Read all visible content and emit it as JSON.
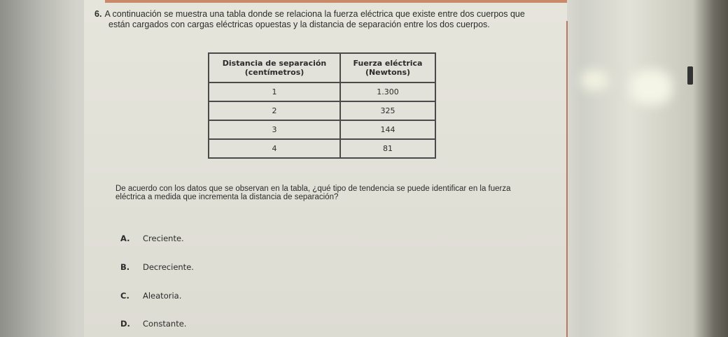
{
  "question": {
    "number": "6.",
    "line1": "A continuación se muestra una tabla donde se relaciona la fuerza eléctrica que existe entre dos cuerpos que",
    "line2": "están cargados con cargas  eléctricas opuestas y la distancia de separación entre los dos cuerpos."
  },
  "table": {
    "headers": [
      "Distancia de separación",
      "(centímetros)",
      "Fuerza eléctrica",
      "(Newtons)"
    ],
    "rows": [
      [
        "1",
        "1.300"
      ],
      [
        "2",
        "325"
      ],
      [
        "3",
        "144"
      ],
      [
        "4",
        "81"
      ]
    ]
  },
  "prompt": {
    "line1": "De acuerdo con los datos que se observan en la tabla, ¿qué tipo de tendencia se puede identificar en la fuerza",
    "line2": "eléctrica a medida que incrementa la distancia de separación?"
  },
  "options": [
    {
      "letter": "A.",
      "text": "Creciente."
    },
    {
      "letter": "B.",
      "text": "Decreciente."
    },
    {
      "letter": "C.",
      "text": "Aleatoria."
    },
    {
      "letter": "D.",
      "text": "Constante."
    }
  ]
}
